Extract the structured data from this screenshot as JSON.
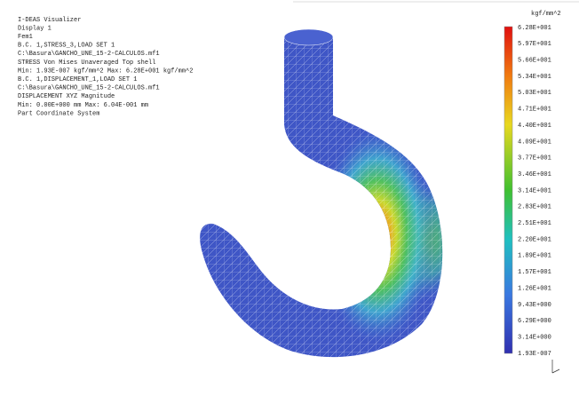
{
  "info_lines": [
    "I-DEAS Visualizer",
    "Display 1",
    "Fem1",
    "B.C. 1,STRESS_3,LOAD SET 1",
    "C:\\Basura\\GANCHO_UNE_15-2-CALCULOS.mf1",
    "STRESS  Von Mises  Unaveraged  Top shell",
    "Min: 1.93E-007 kgf/mm^2  Max: 6.28E+001 kgf/mm^2",
    "B.C. 1,DISPLACEMENT_1,LOAD SET 1",
    "C:\\Basura\\GANCHO_UNE_15-2-CALCULOS.mf1",
    "DISPLACEMENT  XYZ  Magnitude",
    "Min: 0.00E+000 mm  Max: 6.04E-001 mm",
    "Part Coordinate System"
  ],
  "legend": {
    "title": "kgf/mm^2",
    "labels": [
      "6.28E+001",
      "5.97E+001",
      "5.66E+001",
      "5.34E+001",
      "5.03E+001",
      "4.71E+001",
      "4.40E+001",
      "4.09E+001",
      "3.77E+001",
      "3.46E+001",
      "3.14E+001",
      "2.83E+001",
      "2.51E+001",
      "2.20E+001",
      "1.89E+001",
      "1.57E+001",
      "1.26E+001",
      "9.43E+000",
      "6.29E+000",
      "3.14E+000",
      "1.93E-007"
    ]
  }
}
